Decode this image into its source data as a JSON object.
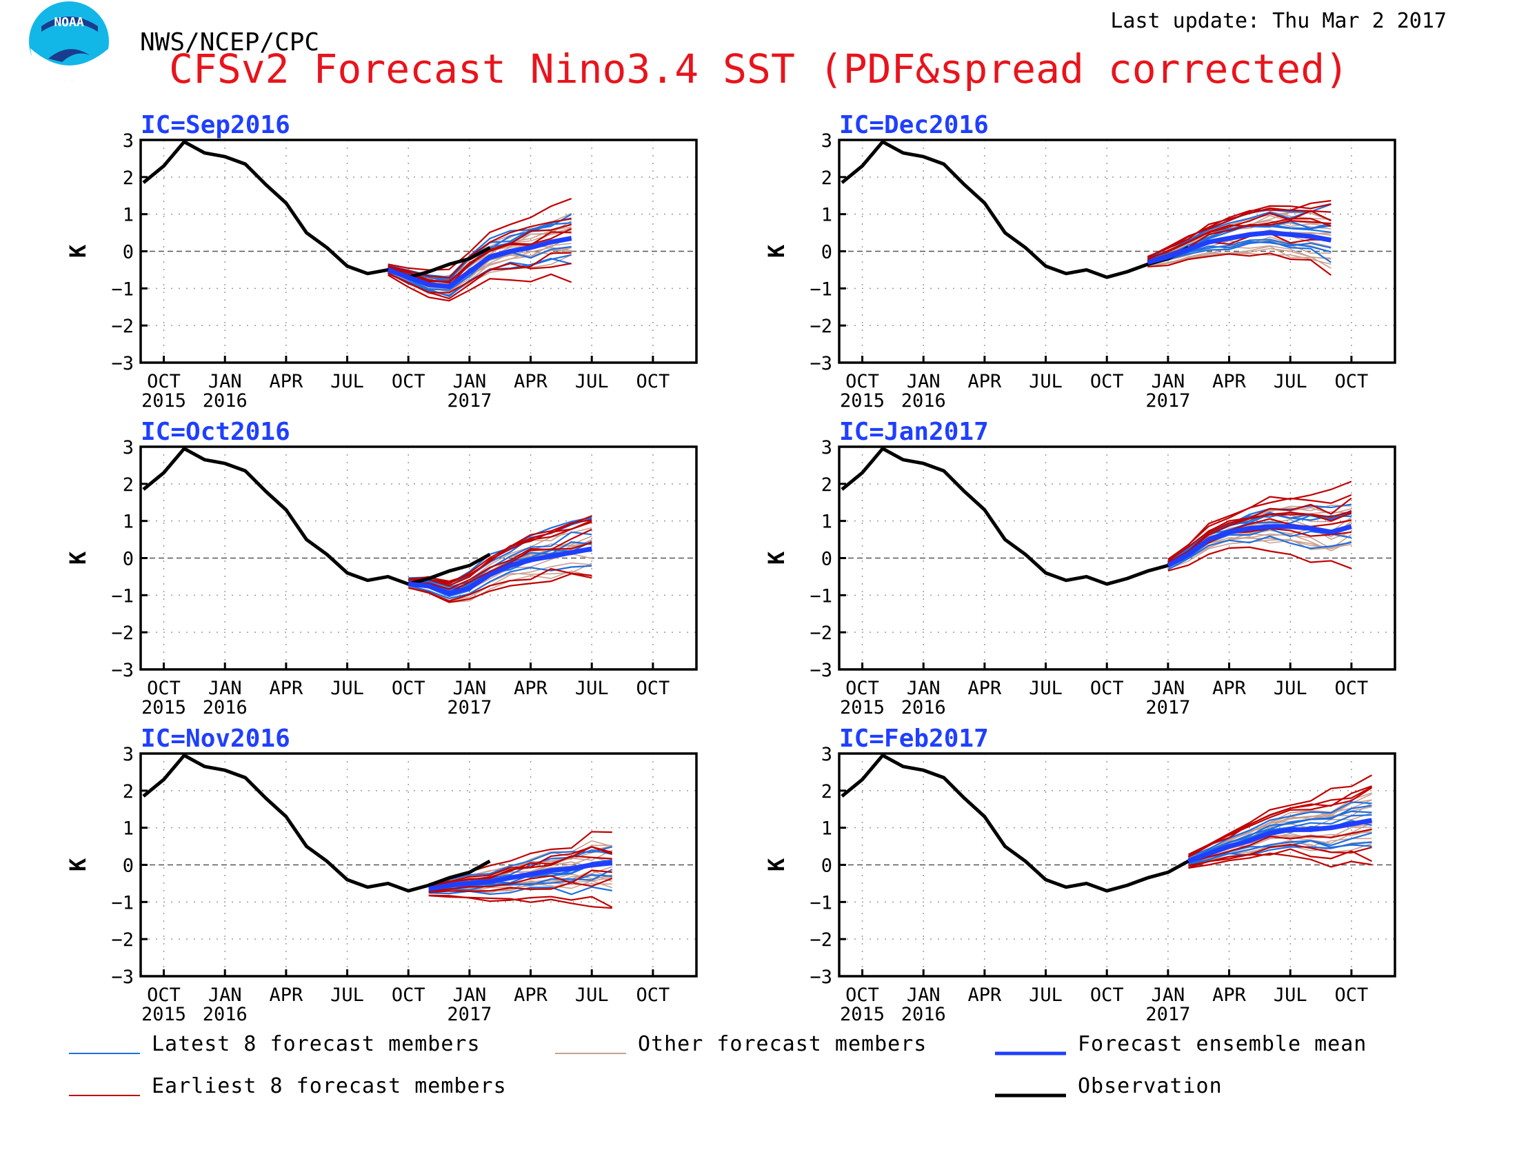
{
  "header": {
    "agency": "NWS/NCEP/CPC",
    "title": "CFSv2 Forecast Nino3.4 SST (PDF&spread corrected)",
    "last_update": "Last update: Thu Mar 2 2017",
    "logo_text": "NOAA"
  },
  "colors": {
    "title": "#e8141c",
    "panel_title": "#1f3fff",
    "latest": "#1e6ee0",
    "earliest": "#c00000",
    "other": "#c8a090",
    "mean": "#1f3fff",
    "observation": "#000000"
  },
  "legend": [
    {
      "key": "latest",
      "label": "Latest 8 forecast members",
      "color": "#1e6ee0"
    },
    {
      "key": "other",
      "label": "Other forecast members",
      "color": "#c8a090"
    },
    {
      "key": "mean",
      "label": "Forecast ensemble mean",
      "color": "#1f3fff"
    },
    {
      "key": "earliest",
      "label": "Earliest 8 forecast members",
      "color": "#c00000"
    },
    {
      "key": "observation",
      "label": "Observation",
      "color": "#000000"
    }
  ],
  "chart_data": {
    "type": "line",
    "ylabel": "K",
    "ylim": [
      -3,
      3
    ],
    "yticks": [
      "3",
      "2",
      "1",
      "0",
      "−1",
      "−2",
      "−3"
    ],
    "x_tick_labels": [
      "OCT",
      "JAN",
      "APR",
      "JUL",
      "OCT",
      "JAN",
      "APR",
      "JUL",
      "OCT"
    ],
    "x_year_labels": [
      {
        "label": "2015",
        "at": "OCT"
      },
      {
        "label": "2016",
        "at": "JAN"
      },
      {
        "label": "2017",
        "at": "JAN"
      }
    ],
    "months": [
      "Sep2015",
      "Oct2015",
      "Nov2015",
      "Dec2015",
      "Jan2016",
      "Feb2016",
      "Mar2016",
      "Apr2016",
      "May2016",
      "Jun2016",
      "Jul2016",
      "Aug2016",
      "Sep2016",
      "Oct2016",
      "Nov2016",
      "Dec2016",
      "Jan2017",
      "Feb2017",
      "Mar2017",
      "Apr2017",
      "May2017",
      "Jun2017",
      "Jul2017",
      "Aug2017",
      "Sep2017",
      "Oct2017",
      "Nov2017",
      "Dec2017"
    ],
    "observation": [
      1.85,
      2.3,
      2.95,
      2.65,
      2.55,
      2.35,
      1.8,
      1.3,
      0.5,
      0.1,
      -0.4,
      -0.6,
      -0.5,
      -0.7,
      -0.55,
      -0.35,
      -0.2,
      0.1
    ],
    "panels": [
      {
        "title": "IC=Sep2016",
        "obs_end": "Feb2017",
        "mean": [
          -0.5,
          -0.7,
          -0.9,
          -0.95,
          -0.55,
          -0.15,
          0.0,
          0.1,
          0.25,
          0.35
        ]
      },
      {
        "title": "IC=Dec2016",
        "obs_end": "Feb2017",
        "mean": [
          -0.3,
          -0.15,
          0.05,
          0.25,
          0.35,
          0.45,
          0.5,
          0.45,
          0.4,
          0.3
        ]
      },
      {
        "title": "IC=Oct2016",
        "obs_end": "Feb2017",
        "mean": [
          -0.7,
          -0.75,
          -0.95,
          -0.8,
          -0.45,
          -0.2,
          -0.05,
          0.05,
          0.15,
          0.25
        ]
      },
      {
        "title": "IC=Jan2017",
        "obs_end": "Feb2017",
        "mean": [
          -0.2,
          0.1,
          0.5,
          0.7,
          0.8,
          0.85,
          0.85,
          0.8,
          0.7,
          0.85
        ]
      },
      {
        "title": "IC=Nov2016",
        "obs_end": "Feb2017",
        "mean": [
          -0.65,
          -0.55,
          -0.5,
          -0.45,
          -0.35,
          -0.25,
          -0.15,
          -0.1,
          0.0,
          0.05
        ]
      },
      {
        "title": "IC=Feb2017",
        "obs_end": "Feb2017",
        "mean": [
          0.1,
          0.3,
          0.5,
          0.65,
          0.85,
          0.95,
          0.95,
          1.0,
          1.1,
          1.2
        ]
      }
    ]
  }
}
